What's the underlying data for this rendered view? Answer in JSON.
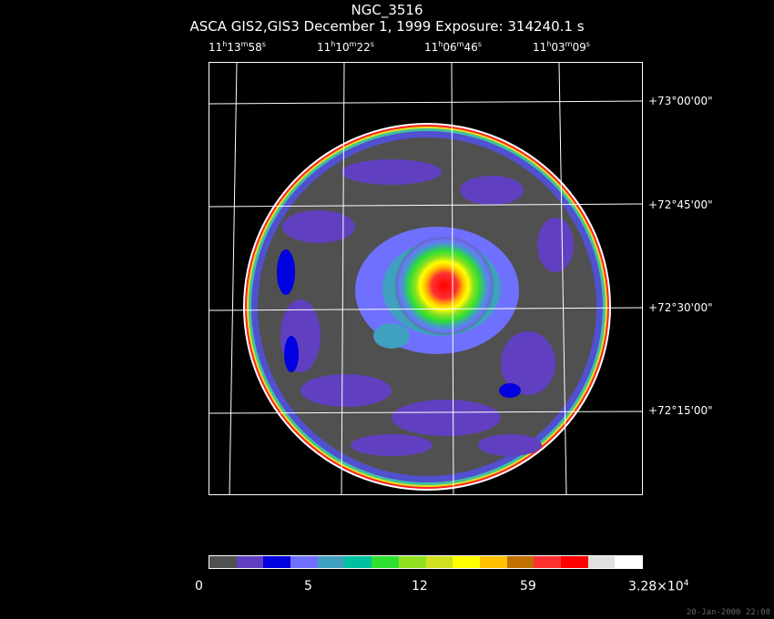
{
  "title": "NGC_3516",
  "subtitle": "ASCA GIS2,GIS3 December 1, 1999 Exposure: 314240.1 s",
  "ra_labels": [
    {
      "h": "11",
      "m": "13",
      "s": "58"
    },
    {
      "h": "11",
      "m": "10",
      "s": "22"
    },
    {
      "h": "11",
      "m": "06",
      "s": "46"
    },
    {
      "h": "11",
      "m": "03",
      "s": "09"
    }
  ],
  "dec_labels": [
    "+73°00'00\"",
    "+72°45'00\"",
    "+72°30'00\"",
    "+72°15'00\""
  ],
  "colorbar": {
    "colors": [
      "#505050",
      "#6040c0",
      "#0000e0",
      "#7070ff",
      "#40a0c0",
      "#00c0a0",
      "#30e030",
      "#90e020",
      "#d0e020",
      "#ffff00",
      "#ffc000",
      "#c07000",
      "#ff3030",
      "#ff0000",
      "#e0e0e0",
      "#ffffff"
    ],
    "labels": [
      "0",
      "5",
      "12",
      "59"
    ],
    "max_mantissa": "3.28×10",
    "max_exponent": "4"
  },
  "stamp": "20-Jan-2000 22:08"
}
